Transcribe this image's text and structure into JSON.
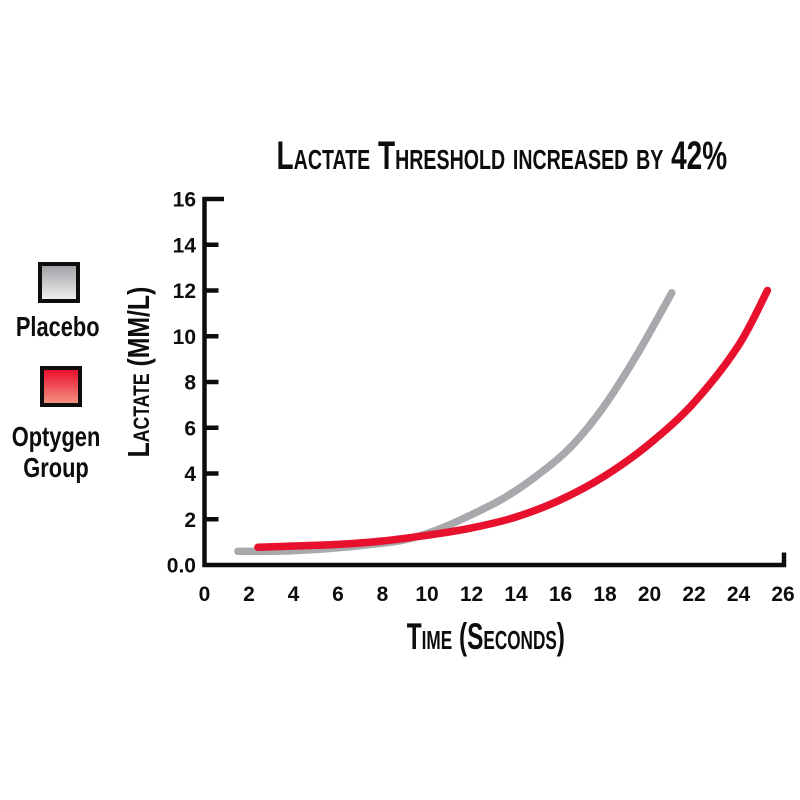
{
  "title": "Lactate Threshold increased by 42%",
  "legend": {
    "position": "left",
    "items": [
      {
        "id": "placebo",
        "label": "Placebo",
        "swatch_top": "#a0a2a5",
        "swatch_bottom": "#eeeeef"
      },
      {
        "id": "optygen",
        "label": "Optygen Group",
        "swatch_top": "#ec0f2f",
        "swatch_bottom": "#f29180"
      }
    ]
  },
  "chart_data": {
    "type": "line",
    "title": "Lactate Threshold increased by 42%",
    "xlabel": "Time (Seconds)",
    "ylabel": "Lactate (MM/L)",
    "xlim": [
      0,
      26
    ],
    "ylim": [
      0,
      16
    ],
    "x_ticks": [
      0,
      2,
      4,
      6,
      8,
      10,
      12,
      14,
      16,
      18,
      20,
      22,
      24,
      26
    ],
    "y_ticks": [
      {
        "value": 16,
        "label": "16"
      },
      {
        "value": 14,
        "label": "14"
      },
      {
        "value": 12,
        "label": "12"
      },
      {
        "value": 10,
        "label": "10"
      },
      {
        "value": 8,
        "label": "8"
      },
      {
        "value": 6,
        "label": "6"
      },
      {
        "value": 4,
        "label": "4"
      },
      {
        "value": 2,
        "label": "2"
      },
      {
        "value": 0,
        "label": "0.0"
      }
    ],
    "grid": false,
    "legend_position": "left",
    "axis_color": "#0d0d0d",
    "series": [
      {
        "name": "Placebo",
        "color": "#a7a9ac",
        "x": [
          1.5,
          3,
          4.5,
          6,
          7.5,
          9,
          10.5,
          12,
          13.5,
          15,
          16.5,
          18,
          19.5,
          21
        ],
        "y": [
          0.6,
          0.6,
          0.65,
          0.75,
          0.9,
          1.1,
          1.55,
          2.2,
          2.95,
          3.95,
          5.2,
          7.0,
          9.3,
          11.9
        ]
      },
      {
        "name": "Optygen Group",
        "color": "#e8112d",
        "x": [
          2.4,
          4,
          6,
          8,
          10,
          12,
          14,
          16,
          18,
          20,
          22,
          24,
          25.3
        ],
        "y": [
          0.78,
          0.83,
          0.9,
          1.05,
          1.3,
          1.62,
          2.1,
          2.85,
          3.9,
          5.3,
          7.1,
          9.6,
          12.0
        ]
      }
    ]
  }
}
